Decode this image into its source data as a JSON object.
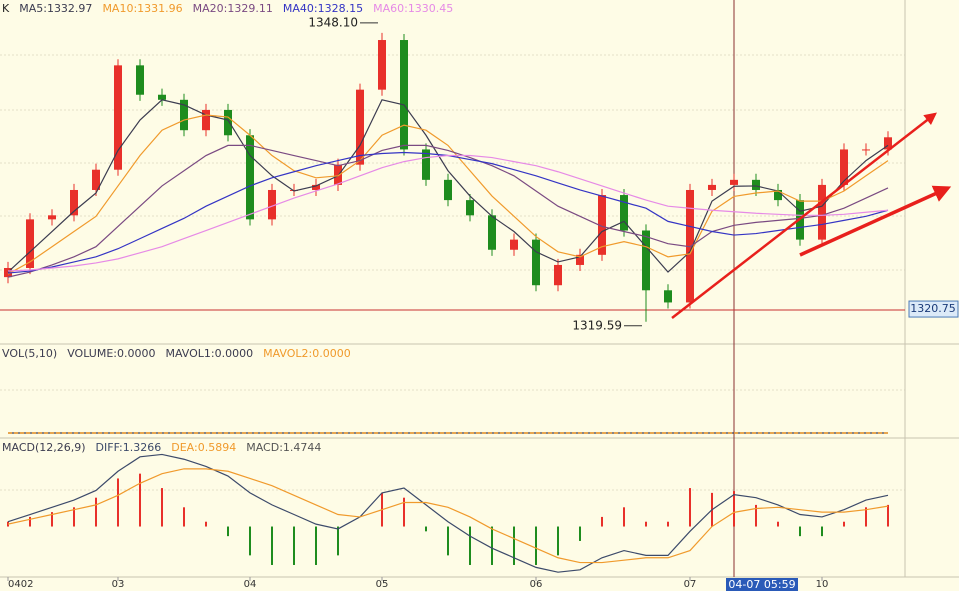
{
  "chart_data": {
    "type": "candlestick",
    "indicator_label": "K",
    "ylim": [
      1317.3,
      1351.35
    ],
    "up_color": "#e8302a",
    "down_color": "#1e8c1e",
    "open": [
      1324.0,
      1324.9,
      1329.7,
      1330.1,
      1332.6,
      1334.6,
      1344.9,
      1342.0,
      1341.5,
      1338.5,
      1340.5,
      1338.0,
      1329.7,
      1332.6,
      1332.6,
      1333.1,
      1335.1,
      1342.5,
      1347.4,
      1336.6,
      1333.6,
      1331.6,
      1330.1,
      1326.7,
      1327.7,
      1323.2,
      1325.2,
      1326.2,
      1332.1,
      1328.6,
      1322.7,
      1321.5,
      1332.6,
      1333.1,
      1333.6,
      1332.6,
      1331.6,
      1327.7,
      1333.1,
      1336.6,
      1336.6
    ],
    "high": [
      1325.5,
      1330.3,
      1330.7,
      1333.2,
      1335.2,
      1345.5,
      1345.5,
      1342.6,
      1342.1,
      1341.1,
      1341.1,
      1338.6,
      1333.2,
      1333.2,
      1333.7,
      1335.7,
      1343.1,
      1348.1,
      1348.0,
      1337.2,
      1334.2,
      1332.2,
      1330.7,
      1328.3,
      1328.3,
      1325.8,
      1326.8,
      1332.7,
      1332.7,
      1329.2,
      1323.3,
      1333.2,
      1333.7,
      1334.2,
      1334.2,
      1333.2,
      1332.2,
      1333.7,
      1337.2,
      1337.2,
      1338.4
    ],
    "low": [
      1323.4,
      1324.3,
      1329.1,
      1329.5,
      1332.0,
      1334.0,
      1341.4,
      1340.9,
      1337.9,
      1337.9,
      1337.4,
      1329.1,
      1329.1,
      1332.0,
      1332.0,
      1332.5,
      1334.5,
      1341.9,
      1336.0,
      1333.0,
      1331.0,
      1329.5,
      1326.1,
      1326.1,
      1322.6,
      1322.6,
      1324.6,
      1325.6,
      1328.0,
      1319.59,
      1320.9,
      1320.9,
      1332.0,
      1332.5,
      1332.0,
      1331.0,
      1327.1,
      1327.1,
      1332.5,
      1336.0,
      1336.0
    ],
    "close": [
      1324.9,
      1329.7,
      1330.1,
      1332.6,
      1334.6,
      1344.9,
      1342.0,
      1341.5,
      1338.5,
      1340.5,
      1338.0,
      1329.7,
      1332.6,
      1332.6,
      1333.1,
      1335.1,
      1342.5,
      1347.4,
      1336.6,
      1333.6,
      1331.6,
      1330.1,
      1326.7,
      1327.7,
      1323.2,
      1325.2,
      1326.2,
      1332.1,
      1328.6,
      1322.7,
      1321.5,
      1332.6,
      1333.1,
      1333.6,
      1332.6,
      1331.6,
      1327.7,
      1333.1,
      1336.6,
      1336.6,
      1337.8
    ],
    "series": [
      {
        "name": "MA5",
        "legend_label": "MA5:1332.97",
        "color": "#3c3c50",
        "values": [
          1324.5,
          1326.5,
          1328.5,
          1330.5,
          1332.3,
          1336.5,
          1339.5,
          1341.5,
          1341.0,
          1340.0,
          1339.5,
          1336.0,
          1334.0,
          1332.5,
          1333.0,
          1334.0,
          1337.0,
          1341.5,
          1341.0,
          1338.0,
          1334.5,
          1332.0,
          1330.0,
          1328.5,
          1326.5,
          1325.5,
          1326.0,
          1328.5,
          1329.5,
          1327.0,
          1324.5,
          1326.5,
          1331.5,
          1332.97,
          1333.0,
          1332.5,
          1330.5,
          1331.0,
          1333.5,
          1335.5,
          1337.0
        ]
      },
      {
        "name": "MA10",
        "legend_label": "MA10:1331.96",
        "color": "#f09a2c",
        "values": [
          1324.3,
          1325.5,
          1327.0,
          1328.5,
          1330.0,
          1333.0,
          1336.0,
          1338.5,
          1339.5,
          1340.0,
          1339.8,
          1338.0,
          1336.0,
          1334.5,
          1333.8,
          1334.0,
          1335.5,
          1338.0,
          1339.0,
          1338.5,
          1337.0,
          1334.5,
          1332.0,
          1330.0,
          1328.0,
          1326.5,
          1326.0,
          1327.0,
          1327.5,
          1327.0,
          1326.0,
          1326.3,
          1330.5,
          1331.96,
          1332.3,
          1332.5,
          1331.5,
          1331.5,
          1332.5,
          1334.0,
          1335.5
        ]
      },
      {
        "name": "MA20",
        "legend_label": "MA20:1329.11",
        "color": "#7a4a82",
        "values": [
          1324.0,
          1324.5,
          1325.2,
          1326.0,
          1327.0,
          1329.0,
          1331.0,
          1333.0,
          1334.5,
          1336.0,
          1337.0,
          1337.0,
          1336.5,
          1336.0,
          1335.5,
          1335.0,
          1335.5,
          1336.5,
          1337.0,
          1337.0,
          1336.5,
          1335.8,
          1335.0,
          1334.0,
          1332.5,
          1331.0,
          1330.0,
          1329.0,
          1328.5,
          1328.0,
          1327.3,
          1327.0,
          1328.5,
          1329.11,
          1329.4,
          1329.6,
          1329.8,
          1330.1,
          1330.8,
          1331.8,
          1332.8
        ]
      },
      {
        "name": "MA40",
        "legend_label": "MA40:1328.15",
        "color": "#3434c4",
        "values": [
          1324.4,
          1324.6,
          1325.0,
          1325.5,
          1326.0,
          1326.8,
          1327.8,
          1328.8,
          1329.8,
          1331.0,
          1332.0,
          1333.0,
          1333.8,
          1334.4,
          1335.0,
          1335.5,
          1336.0,
          1336.2,
          1336.3,
          1336.2,
          1336.0,
          1335.6,
          1335.2,
          1334.6,
          1334.0,
          1333.3,
          1332.6,
          1332.0,
          1331.4,
          1330.8,
          1329.5,
          1329.0,
          1328.5,
          1328.15,
          1328.3,
          1328.6,
          1328.9,
          1329.2,
          1329.6,
          1330.0,
          1330.6
        ]
      },
      {
        "name": "MA60",
        "legend_label": "MA60:1330.45",
        "color": "#e68ae6",
        "values": [
          1324.6,
          1324.7,
          1324.9,
          1325.1,
          1325.4,
          1325.8,
          1326.4,
          1327.0,
          1327.8,
          1328.6,
          1329.4,
          1330.2,
          1331.0,
          1331.8,
          1332.5,
          1333.2,
          1334.0,
          1334.8,
          1335.4,
          1335.8,
          1336.0,
          1336.0,
          1335.8,
          1335.4,
          1335.0,
          1334.4,
          1333.7,
          1333.0,
          1332.3,
          1331.6,
          1331.0,
          1330.8,
          1330.6,
          1330.45,
          1330.3,
          1330.2,
          1330.1,
          1330.1,
          1330.2,
          1330.4,
          1330.6
        ]
      }
    ],
    "annotations": [
      {
        "text": "1348.10",
        "index": 17,
        "value": 1348.1
      },
      {
        "text": "1319.59",
        "index": 29,
        "value": 1319.59
      }
    ],
    "price_line": {
      "value": 1320.75,
      "label": "1320.75"
    },
    "x_labels": [
      {
        "index": 0,
        "label": "0402"
      },
      {
        "index": 5,
        "label": "03"
      },
      {
        "index": 11,
        "label": "04"
      },
      {
        "index": 17,
        "label": "05"
      },
      {
        "index": 24,
        "label": "06"
      },
      {
        "index": 31,
        "label": "07"
      },
      {
        "index": 37,
        "label": "10"
      }
    ],
    "cursor": {
      "index": 33,
      "label": "04-07 05:59"
    },
    "volume_panel": {
      "labels": [
        "VOL(5,10)",
        "VOLUME:0.0000",
        "MAVOL1:0.0000",
        "MAVOL2:0.0000"
      ],
      "ylim": [
        0,
        1
      ],
      "series": [
        {
          "name": "MAVOL1",
          "color": "#3c3c50",
          "values": [
            0,
            0,
            0,
            0,
            0,
            0,
            0,
            0,
            0,
            0,
            0,
            0,
            0,
            0,
            0,
            0,
            0,
            0,
            0,
            0,
            0,
            0,
            0,
            0,
            0,
            0,
            0,
            0,
            0,
            0,
            0,
            0,
            0,
            0,
            0,
            0,
            0,
            0,
            0,
            0,
            0
          ]
        },
        {
          "name": "MAVOL2",
          "color": "#f09a2c",
          "values": [
            0,
            0,
            0,
            0,
            0,
            0,
            0,
            0,
            0,
            0,
            0,
            0,
            0,
            0,
            0,
            0,
            0,
            0,
            0,
            0,
            0,
            0,
            0,
            0,
            0,
            0,
            0,
            0,
            0,
            0,
            0,
            0,
            0,
            0,
            0,
            0,
            0,
            0,
            0,
            0,
            0
          ]
        }
      ]
    },
    "macd_panel": {
      "labels": [
        "MACD(12,26,9)",
        "DIFF:1.3266",
        "DEA:0.5894",
        "MACD:1.4744"
      ],
      "ylim": [
        -2.1,
        3.6
      ],
      "diff": {
        "name": "DIFF",
        "color": "#3c4a6a",
        "values": [
          0.2,
          0.5,
          0.8,
          1.1,
          1.5,
          2.3,
          2.9,
          3.0,
          2.8,
          2.5,
          2.1,
          1.4,
          0.9,
          0.5,
          0.1,
          -0.1,
          0.4,
          1.4,
          1.6,
          0.9,
          0.2,
          -0.4,
          -0.9,
          -1.3,
          -1.7,
          -1.9,
          -1.8,
          -1.3,
          -1.0,
          -1.2,
          -1.2,
          -0.2,
          0.7,
          1.3266,
          1.2,
          0.9,
          0.5,
          0.4,
          0.7,
          1.1,
          1.3
        ]
      },
      "dea": {
        "name": "DEA",
        "color": "#f09a2c",
        "values": [
          0.1,
          0.3,
          0.5,
          0.7,
          0.9,
          1.3,
          1.8,
          2.2,
          2.4,
          2.4,
          2.3,
          2.0,
          1.7,
          1.3,
          0.9,
          0.5,
          0.4,
          0.7,
          1.0,
          1.0,
          0.8,
          0.4,
          -0.1,
          -0.5,
          -0.9,
          -1.3,
          -1.5,
          -1.5,
          -1.4,
          -1.3,
          -1.3,
          -1.0,
          0.0,
          0.5894,
          0.75,
          0.8,
          0.7,
          0.6,
          0.6,
          0.7,
          0.85
        ]
      },
      "macd": {
        "name": "MACD",
        "up_color": "#e8302a",
        "down_color": "#1e8c1e",
        "values": [
          0.2,
          0.4,
          0.6,
          0.8,
          1.2,
          2.0,
          2.2,
          1.6,
          0.8,
          0.2,
          -0.4,
          -1.2,
          -1.6,
          -1.6,
          -1.6,
          -1.2,
          0.0,
          1.4,
          1.2,
          -0.2,
          -1.2,
          -1.6,
          -1.6,
          -1.6,
          -1.6,
          -1.2,
          -0.6,
          0.4,
          0.8,
          0.2,
          0.2,
          1.6,
          1.4,
          1.4744,
          0.9,
          0.2,
          -0.4,
          -0.4,
          0.2,
          0.8,
          0.9
        ]
      }
    }
  }
}
